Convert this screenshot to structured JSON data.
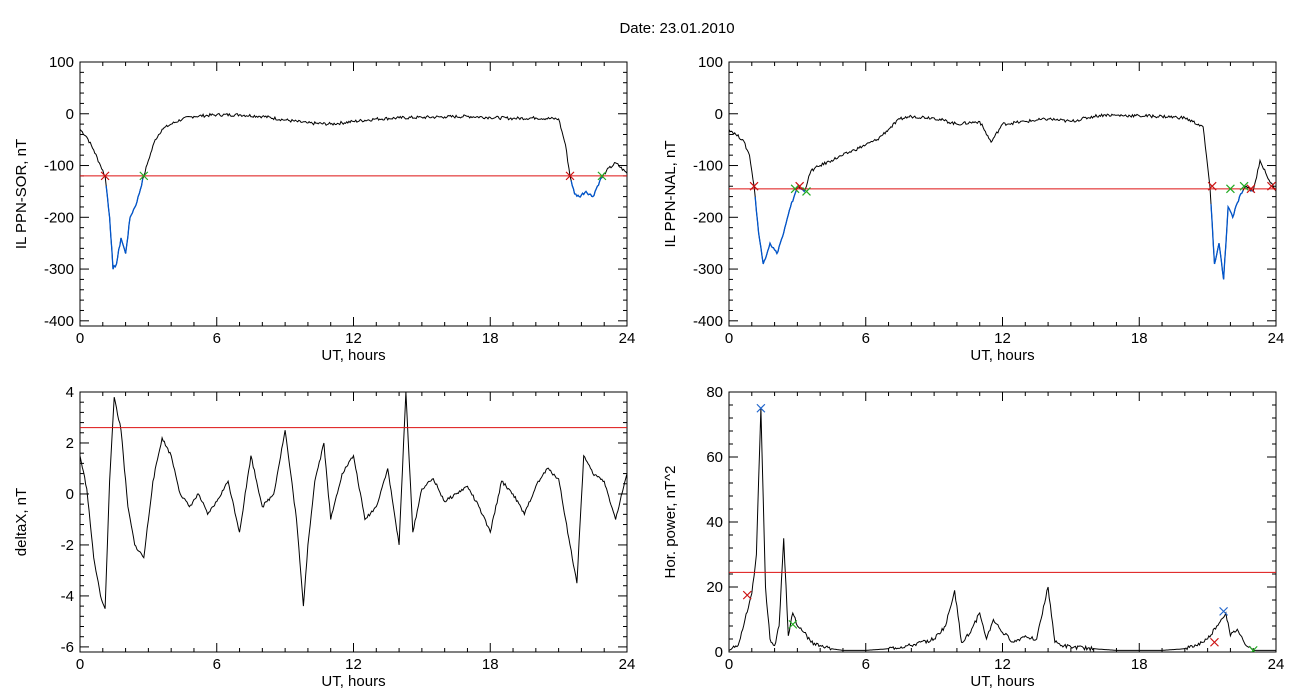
{
  "figure": {
    "title": "Date:  23.01.2010"
  },
  "colors": {
    "series": "#000000",
    "threshold": "#dd1111",
    "below": "#0055cc",
    "cross_red": "#cc1111",
    "cross_green": "#22aa22",
    "cross_blue": "#2266cc"
  },
  "chart_data": [
    {
      "type": "line",
      "ylabel": "IL PPN-SOR, nT",
      "xlabel": "UT, hours",
      "xlim": [
        0,
        24
      ],
      "ylim": [
        -410,
        100
      ],
      "xticks": [
        0,
        6,
        12,
        18,
        24
      ],
      "yticks": [
        100,
        0,
        -100,
        -200,
        -300,
        -400
      ],
      "threshold": -120,
      "grid": false,
      "x": [
        0,
        0.3,
        0.6,
        0.9,
        1.1,
        1.3,
        1.45,
        1.6,
        1.8,
        2.0,
        2.2,
        2.5,
        2.8,
        3.0,
        3.3,
        3.6,
        4.0,
        4.5,
        5.0,
        6.0,
        7.0,
        8.0,
        9.0,
        10.0,
        11.0,
        12.0,
        13.0,
        14.0,
        15.0,
        16.0,
        17.0,
        18.0,
        19.0,
        20.0,
        21.0,
        21.3,
        21.5,
        21.7,
        21.9,
        22.2,
        22.5,
        22.8,
        23.1,
        23.5,
        24.0
      ],
      "y": [
        -30,
        -45,
        -70,
        -100,
        -120,
        -200,
        -300,
        -290,
        -240,
        -270,
        -200,
        -170,
        -120,
        -90,
        -50,
        -30,
        -20,
        -10,
        -5,
        -2,
        -2,
        -5,
        -12,
        -18,
        -20,
        -15,
        -10,
        -8,
        -7,
        -6,
        -5,
        -7,
        -9,
        -8,
        -10,
        -60,
        -120,
        -155,
        -160,
        -150,
        -160,
        -130,
        -110,
        -95,
        -115
      ],
      "markers": [
        {
          "x": 1.1,
          "y": -120,
          "color": "red"
        },
        {
          "x": 2.8,
          "y": -120,
          "color": "green"
        },
        {
          "x": 21.5,
          "y": -120,
          "color": "red"
        },
        {
          "x": 22.9,
          "y": -120,
          "color": "green"
        }
      ]
    },
    {
      "type": "line",
      "ylabel": "IL PPN-NAL, nT",
      "xlabel": "UT, hours",
      "xlim": [
        0,
        24
      ],
      "ylim": [
        -410,
        100
      ],
      "xticks": [
        0,
        6,
        12,
        18,
        24
      ],
      "yticks": [
        100,
        0,
        -100,
        -200,
        -300,
        -400
      ],
      "threshold": -145,
      "grid": false,
      "x": [
        0,
        0.3,
        0.6,
        0.9,
        1.1,
        1.3,
        1.5,
        1.8,
        2.1,
        2.4,
        2.7,
        3.0,
        3.3,
        3.6,
        4.0,
        4.5,
        5.0,
        5.5,
        6.0,
        6.5,
        7.0,
        7.5,
        8.0,
        9.0,
        10.0,
        11.0,
        11.5,
        12.0,
        13.0,
        14.0,
        15.0,
        16.0,
        16.5,
        17.0,
        18.0,
        19.0,
        20.0,
        20.8,
        21.1,
        21.3,
        21.5,
        21.7,
        21.9,
        22.1,
        22.4,
        22.7,
        23.0,
        23.3,
        23.6,
        24.0
      ],
      "y": [
        -30,
        -40,
        -50,
        -80,
        -140,
        -230,
        -290,
        -250,
        -270,
        -230,
        -180,
        -140,
        -150,
        -110,
        -100,
        -90,
        -80,
        -70,
        -60,
        -50,
        -30,
        -10,
        -5,
        -8,
        -20,
        -15,
        -55,
        -20,
        -15,
        -10,
        -15,
        -5,
        -2,
        -3,
        -4,
        -5,
        -8,
        -25,
        -140,
        -290,
        -250,
        -320,
        -180,
        -200,
        -160,
        -140,
        -150,
        -90,
        -120,
        -150
      ],
      "markers": [
        {
          "x": 1.1,
          "y": -140,
          "color": "red"
        },
        {
          "x": 2.9,
          "y": -145,
          "color": "green"
        },
        {
          "x": 3.1,
          "y": -140,
          "color": "red"
        },
        {
          "x": 3.4,
          "y": -150,
          "color": "green"
        },
        {
          "x": 21.2,
          "y": -140,
          "color": "red"
        },
        {
          "x": 22.0,
          "y": -145,
          "color": "green"
        },
        {
          "x": 22.6,
          "y": -140,
          "color": "green"
        },
        {
          "x": 22.9,
          "y": -145,
          "color": "red"
        },
        {
          "x": 23.8,
          "y": -140,
          "color": "red"
        }
      ]
    },
    {
      "type": "line",
      "ylabel": "deltaX, nT",
      "xlabel": "UT, hours",
      "xlim": [
        0,
        24
      ],
      "ylim": [
        -6.2,
        4.0
      ],
      "xticks": [
        0,
        6,
        12,
        18,
        24
      ],
      "yticks": [
        4,
        2,
        0,
        -2,
        -4,
        -6
      ],
      "threshold": 2.6,
      "grid": false,
      "x": [
        0,
        0.3,
        0.6,
        0.9,
        1.1,
        1.3,
        1.5,
        1.8,
        2.1,
        2.4,
        2.8,
        3.2,
        3.6,
        4.0,
        4.4,
        4.8,
        5.2,
        5.6,
        6.0,
        6.5,
        7.0,
        7.5,
        8.0,
        8.5,
        9.0,
        9.5,
        9.8,
        10.0,
        10.3,
        10.7,
        11.0,
        11.5,
        12.0,
        12.5,
        13.0,
        13.5,
        14.0,
        14.3,
        14.6,
        15.0,
        15.5,
        16.0,
        16.5,
        17.0,
        17.5,
        18.0,
        18.5,
        19.0,
        19.5,
        20.0,
        20.5,
        21.0,
        21.5,
        21.8,
        22.1,
        22.5,
        23.0,
        23.5,
        24.0
      ],
      "y": [
        1.5,
        0.2,
        -2.5,
        -4.0,
        -4.5,
        0.5,
        3.8,
        2.5,
        -0.5,
        -2.0,
        -2.5,
        0.5,
        2.2,
        1.5,
        0.0,
        -0.5,
        0.0,
        -0.8,
        -0.3,
        0.5,
        -1.5,
        1.5,
        -0.5,
        0.0,
        2.5,
        -1.0,
        -4.4,
        -2.0,
        0.5,
        2.0,
        -1.0,
        0.8,
        1.5,
        -1.0,
        -0.5,
        1.0,
        -2.0,
        4.0,
        -1.5,
        0.2,
        0.6,
        -0.3,
        0.0,
        0.3,
        -0.5,
        -1.5,
        0.5,
        0.0,
        -0.8,
        0.3,
        1.0,
        0.6,
        -2.0,
        -3.5,
        1.5,
        0.8,
        0.5,
        -1.0,
        0.8
      ]
    },
    {
      "type": "line",
      "ylabel": "Hor. power, nT^2",
      "xlabel": "UT, hours",
      "xlim": [
        0,
        24
      ],
      "ylim": [
        0,
        80
      ],
      "xticks": [
        0,
        6,
        12,
        18,
        24
      ],
      "yticks": [
        80,
        60,
        40,
        20,
        0
      ],
      "threshold": 24.5,
      "grid": false,
      "x": [
        0,
        0.4,
        0.7,
        1.0,
        1.2,
        1.4,
        1.6,
        1.8,
        2.0,
        2.2,
        2.4,
        2.6,
        2.8,
        3.0,
        3.3,
        3.6,
        4.0,
        4.5,
        5.0,
        6.0,
        7.0,
        8.0,
        9.0,
        9.5,
        9.9,
        10.2,
        10.6,
        11.0,
        11.3,
        11.6,
        12.0,
        12.5,
        13.0,
        13.5,
        14.0,
        14.3,
        14.6,
        15.0,
        16.0,
        17.0,
        18.0,
        19.0,
        20.0,
        20.5,
        21.0,
        21.4,
        21.8,
        22.0,
        22.3,
        22.6,
        23.0,
        23.4,
        24.0
      ],
      "y": [
        0.5,
        2,
        10,
        18,
        30,
        75,
        20,
        4,
        2,
        8,
        35,
        5,
        12,
        8,
        6,
        3,
        2,
        1,
        0.5,
        0.5,
        1,
        2,
        4,
        8,
        19,
        3,
        6,
        12,
        4,
        10,
        6,
        3,
        5,
        4,
        20,
        3,
        2,
        1.5,
        1,
        0.5,
        0.5,
        0.5,
        1,
        2,
        4,
        8,
        12,
        5,
        7,
        3,
        0.5,
        0.5,
        0.5
      ],
      "markers": [
        {
          "x": 0.8,
          "y": 17.5,
          "color": "red"
        },
        {
          "x": 1.4,
          "y": 75,
          "color": "blue"
        },
        {
          "x": 2.8,
          "y": 8.5,
          "color": "green"
        },
        {
          "x": 21.7,
          "y": 12.5,
          "color": "blue"
        },
        {
          "x": 21.3,
          "y": 3,
          "color": "red"
        },
        {
          "x": 23.0,
          "y": 0.5,
          "color": "green"
        }
      ]
    }
  ]
}
